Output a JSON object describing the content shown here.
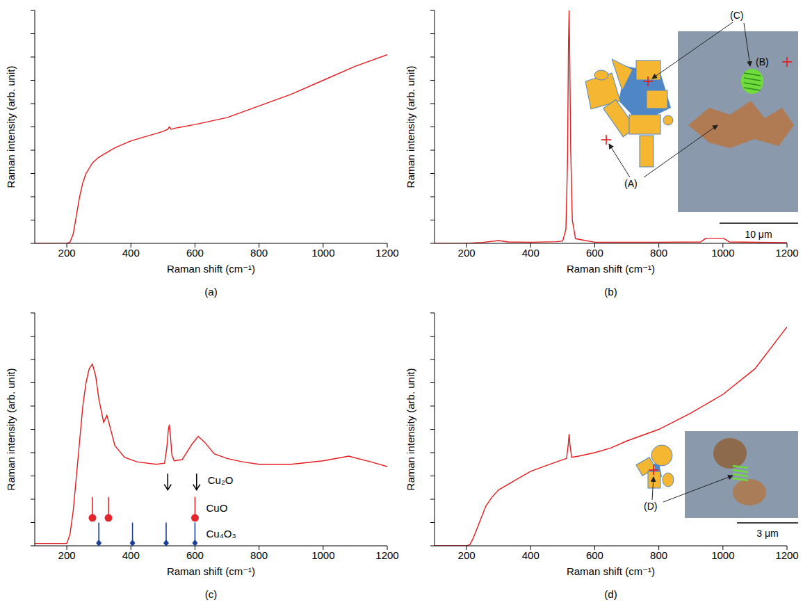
{
  "chart_data": [
    {
      "type": "line",
      "title": "(a)",
      "x_label": "Raman shift (cm⁻¹)",
      "y_label": "Raman intensity (arb. unit)",
      "color": "#e41a1c",
      "xlim": [
        100,
        1200
      ],
      "xticks": [
        200,
        400,
        600,
        800,
        1000,
        1200
      ],
      "ylim": [
        0,
        10
      ],
      "yticks": [
        0,
        1,
        2,
        3,
        4,
        5,
        6,
        7,
        8,
        9,
        10
      ],
      "tick_labels": "x",
      "x": [
        100,
        150,
        200,
        210,
        220,
        230,
        240,
        250,
        260,
        280,
        300,
        350,
        400,
        450,
        500,
        515,
        520,
        525,
        540,
        600,
        650,
        700,
        800,
        900,
        1000,
        1100,
        1200
      ],
      "values": [
        0,
        0,
        0,
        0.05,
        0.4,
        1.2,
        2.0,
        2.6,
        3.0,
        3.45,
        3.7,
        4.1,
        4.4,
        4.6,
        4.8,
        4.9,
        5.0,
        4.9,
        4.95,
        5.1,
        5.25,
        5.4,
        5.9,
        6.4,
        7.0,
        7.6,
        8.1
      ]
    },
    {
      "type": "line",
      "title": "(b)",
      "x_label": "Raman shift (cm⁻¹)",
      "y_label": "Raman intensity (arb. unit)",
      "color": "#e41a1c",
      "xlim": [
        100,
        1200
      ],
      "xticks": [
        200,
        400,
        600,
        800,
        1000,
        1200
      ],
      "ylim": [
        0,
        10
      ],
      "yticks": [
        0,
        1,
        2,
        3,
        4,
        5,
        6,
        7,
        8,
        9,
        10
      ],
      "tick_labels": "x",
      "x": [
        100,
        200,
        250,
        300,
        330,
        400,
        480,
        500,
        510,
        515,
        518,
        520,
        522,
        525,
        530,
        540,
        600,
        800,
        930,
        945,
        960,
        1000,
        1010,
        1020,
        1200
      ],
      "values": [
        0,
        0,
        0.04,
        0.12,
        0.06,
        0.05,
        0.07,
        0.1,
        0.6,
        3.5,
        8.5,
        10,
        8.0,
        4.0,
        1.0,
        0.2,
        0.05,
        0.05,
        0.06,
        0.2,
        0.22,
        0.22,
        0.15,
        0.06,
        0.03
      ],
      "annotations": [
        "(A)",
        "(B)",
        "(C)"
      ],
      "scale_bar": "10 μm"
    },
    {
      "type": "line",
      "title": "(c)",
      "x_label": "Raman shift (cm⁻¹)",
      "y_label": "Raman intensity (arb. unit)",
      "color": "#e41a1c",
      "xlim": [
        100,
        1200
      ],
      "xticks": [
        200,
        400,
        600,
        800,
        1000,
        1200
      ],
      "ylim": [
        0,
        10
      ],
      "yticks": [
        0,
        1,
        2,
        3,
        4,
        5,
        6,
        7,
        8,
        9,
        10
      ],
      "tick_labels": "x",
      "x": [
        100,
        150,
        200,
        210,
        220,
        230,
        240,
        250,
        260,
        270,
        280,
        290,
        300,
        315,
        325,
        335,
        350,
        380,
        420,
        480,
        505,
        512,
        517,
        520,
        523,
        528,
        535,
        560,
        590,
        610,
        630,
        660,
        700,
        750,
        800,
        900,
        1000,
        1080,
        1150,
        1200
      ],
      "values": [
        0.1,
        0.1,
        0.1,
        0.5,
        1.5,
        3.0,
        4.5,
        6.0,
        7.0,
        7.6,
        7.8,
        7.3,
        6.3,
        5.3,
        5.6,
        5.1,
        4.3,
        3.8,
        3.6,
        3.5,
        3.55,
        4.2,
        5.0,
        5.2,
        4.8,
        3.9,
        3.65,
        3.7,
        4.35,
        4.7,
        4.45,
        3.95,
        3.75,
        3.6,
        3.5,
        3.5,
        3.65,
        3.85,
        3.6,
        3.4
      ],
      "reference_peaks": [
        {
          "name": "Cu₂O",
          "color": "#000000",
          "marker": "arrow",
          "positions": [
            515,
            605
          ]
        },
        {
          "name": "CuO",
          "color": "#e3262b",
          "marker": "circle",
          "positions": [
            280,
            330,
            600
          ]
        },
        {
          "name": "Cu₄O₃",
          "color": "#1b3f99",
          "marker": "diamond",
          "positions": [
            300,
            405,
            510,
            600
          ]
        }
      ]
    },
    {
      "type": "line",
      "title": "(d)",
      "x_label": "Raman shift (cm⁻¹)",
      "y_label": "Raman intensity (arb. unit)",
      "color": "#e41a1c",
      "xlim": [
        100,
        1200
      ],
      "xticks": [
        200,
        400,
        600,
        800,
        1000,
        1200
      ],
      "ylim": [
        0,
        10
      ],
      "yticks": [
        0,
        1,
        2,
        3,
        4,
        5,
        6,
        7,
        8,
        9,
        10
      ],
      "tick_labels": "x",
      "x": [
        100,
        150,
        200,
        210,
        220,
        240,
        260,
        280,
        300,
        350,
        400,
        450,
        500,
        512,
        517,
        520,
        523,
        528,
        550,
        600,
        650,
        700,
        800,
        900,
        1000,
        1100,
        1200
      ],
      "values": [
        0,
        0,
        0,
        0.05,
        0.3,
        1.0,
        1.7,
        2.1,
        2.4,
        2.8,
        3.2,
        3.45,
        3.7,
        3.75,
        4.3,
        4.8,
        4.3,
        3.8,
        3.85,
        4.0,
        4.2,
        4.5,
        5.0,
        5.7,
        6.5,
        7.6,
        9.4
      ],
      "annotations": [
        "(D)"
      ],
      "scale_bar": "3 μm"
    }
  ]
}
